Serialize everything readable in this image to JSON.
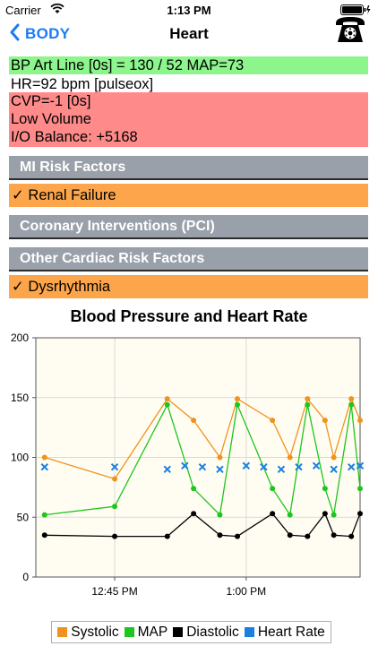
{
  "status_bar": {
    "carrier": "Carrier",
    "time": "1:13 PM"
  },
  "nav": {
    "back_label": "BODY",
    "title": "Heart"
  },
  "vitals": [
    {
      "text": "BP Art Line [0s] = 130 / 52 MAP=73",
      "status": "green"
    },
    {
      "text": "HR=92 bpm [pulseox]",
      "status": "none"
    },
    {
      "text": "CVP=-1 [0s]",
      "status": "red"
    },
    {
      "text": "Low Volume",
      "status": "red"
    },
    {
      "text": "I/O Balance: +5168",
      "status": "red"
    }
  ],
  "sections": {
    "mi_risk": "MI Risk Factors",
    "mi_items": [
      "✓ Renal Failure"
    ],
    "pci": "Coronary Interventions (PCI)",
    "other": "Other Cardiac Risk Factors",
    "other_items": [
      "✓ Dysrhythmia"
    ]
  },
  "colors": {
    "vital_green": "#8cf58b",
    "vital_red": "#ff8a8a",
    "section_gray": "#9aa0a9",
    "risk_orange": "#fca54a",
    "ios_blue": "#1a7cf5"
  },
  "icons": {
    "back": "chevron-left-icon",
    "phone": "telephone-icon",
    "wifi": "wifi-icon",
    "battery": "battery-icon"
  },
  "chart_data": {
    "type": "line",
    "title": "Blood Pressure and Heart Rate",
    "x_unit": "time",
    "x_range": [
      "12:36 PM",
      "1:13 PM"
    ],
    "x_ticks": [
      "12:45 PM",
      "1:00 PM"
    ],
    "y_range": [
      0,
      200
    ],
    "y_ticks": [
      0,
      50,
      100,
      150,
      200
    ],
    "grid": true,
    "legend_position": "bottom",
    "series": [
      {
        "name": "Systolic",
        "color": "#f0921e",
        "marker": "circle",
        "points": [
          [
            "12:37 PM",
            100
          ],
          [
            "12:45 PM",
            82
          ],
          [
            "12:51 PM",
            149
          ],
          [
            "12:54 PM",
            131
          ],
          [
            "12:57 PM",
            100
          ],
          [
            "12:59 PM",
            149
          ],
          [
            "1:03 PM",
            131
          ],
          [
            "1:05 PM",
            100
          ],
          [
            "1:07 PM",
            149
          ],
          [
            "1:09 PM",
            131
          ],
          [
            "1:10 PM",
            100
          ],
          [
            "1:12 PM",
            149
          ],
          [
            "1:13 PM",
            131
          ]
        ]
      },
      {
        "name": "MAP",
        "color": "#1ec51e",
        "marker": "circle",
        "points": [
          [
            "12:37 PM",
            52
          ],
          [
            "12:45 PM",
            59
          ],
          [
            "12:51 PM",
            144
          ],
          [
            "12:54 PM",
            74
          ],
          [
            "12:57 PM",
            52
          ],
          [
            "12:59 PM",
            144
          ],
          [
            "1:03 PM",
            74
          ],
          [
            "1:05 PM",
            52
          ],
          [
            "1:07 PM",
            144
          ],
          [
            "1:09 PM",
            74
          ],
          [
            "1:10 PM",
            52
          ],
          [
            "1:12 PM",
            144
          ],
          [
            "1:13 PM",
            74
          ]
        ]
      },
      {
        "name": "Diastolic",
        "color": "#000000",
        "marker": "circle",
        "points": [
          [
            "12:37 PM",
            35
          ],
          [
            "12:45 PM",
            34
          ],
          [
            "12:51 PM",
            34
          ],
          [
            "12:54 PM",
            53
          ],
          [
            "12:57 PM",
            35
          ],
          [
            "12:59 PM",
            34
          ],
          [
            "1:03 PM",
            53
          ],
          [
            "1:05 PM",
            35
          ],
          [
            "1:07 PM",
            34
          ],
          [
            "1:09 PM",
            53
          ],
          [
            "1:10 PM",
            35
          ],
          [
            "1:12 PM",
            34
          ],
          [
            "1:13 PM",
            53
          ]
        ]
      },
      {
        "name": "Heart Rate",
        "color": "#1a7fe0",
        "marker": "x",
        "line": false,
        "points": [
          [
            "12:37 PM",
            92
          ],
          [
            "12:45 PM",
            92
          ],
          [
            "12:51 PM",
            90
          ],
          [
            "12:53 PM",
            93
          ],
          [
            "12:55 PM",
            92
          ],
          [
            "12:57 PM",
            90
          ],
          [
            "1:00 PM",
            93
          ],
          [
            "1:02 PM",
            92
          ],
          [
            "1:04 PM",
            90
          ],
          [
            "1:06 PM",
            92
          ],
          [
            "1:08 PM",
            93
          ],
          [
            "1:10 PM",
            90
          ],
          [
            "1:12 PM",
            92
          ],
          [
            "1:13 PM",
            93
          ]
        ]
      }
    ]
  }
}
